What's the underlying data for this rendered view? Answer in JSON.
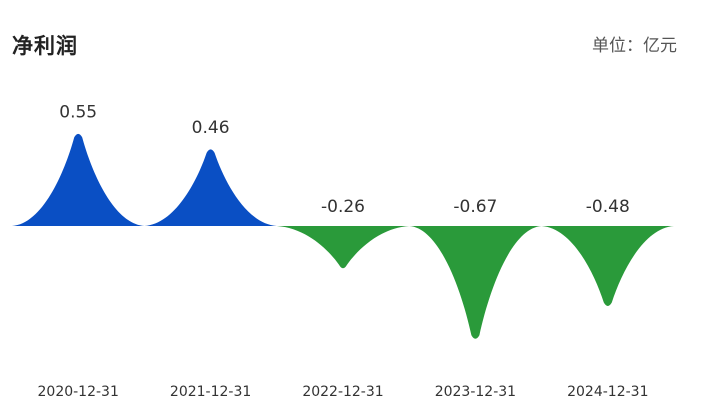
{
  "chart_data": {
    "type": "area",
    "title": "净利润",
    "unit_label": "单位：亿元",
    "categories": [
      "2020-12-31",
      "2021-12-31",
      "2022-12-31",
      "2023-12-31",
      "2024-12-31"
    ],
    "values": [
      0.55,
      0.46,
      -0.26,
      -0.67,
      -0.48
    ],
    "value_labels": [
      "0.55",
      "0.46",
      "-0.26",
      "-0.67",
      "-0.48"
    ],
    "positive_color": "#0A4FC4",
    "negative_color": "#2A9A3A",
    "ylim": [
      -0.67,
      0.55
    ],
    "grid": false,
    "legend": "none"
  }
}
